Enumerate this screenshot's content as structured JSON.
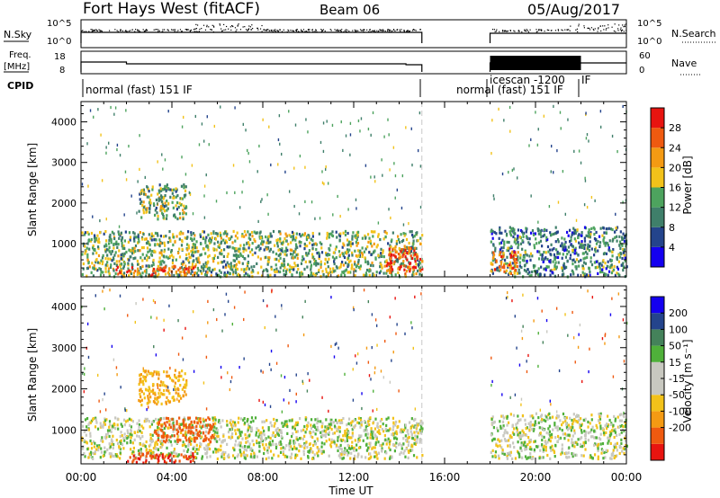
{
  "header": {
    "station": "Fort Hays West (fitACF)",
    "beam": "Beam 06",
    "date": "05/Aug/2017"
  },
  "summary_panels": {
    "nsky_label": "N.Sky",
    "nsky_ticks": [
      "10^5",
      "10^0"
    ],
    "nsearch_label": "N.Search",
    "freq_label_1": "Freq.",
    "freq_label_2": "[MHz]",
    "freq_ticks": [
      "18",
      "8"
    ],
    "nave_label": "Nave",
    "nave_ticks": [
      "60",
      "0"
    ],
    "cpid_label": "CPID",
    "cpid_segments": [
      "normal (fast) 151 IF",
      "normal (fast)  151 IF",
      "icescan -1200",
      "IF"
    ]
  },
  "colors": {
    "power": [
      "#1400f0",
      "#24448c",
      "#3f7f6a",
      "#4da35e",
      "#f2c21a",
      "#f49a13",
      "#ef5a10",
      "#e81410"
    ],
    "velocity": [
      "#e81410",
      "#ef5a10",
      "#f49a13",
      "#f2c21a",
      "#c8c8c0",
      "#c8c8c0",
      "#4fb03a",
      "#44825a",
      "#24448c",
      "#1400f0"
    ]
  },
  "chart_data": [
    {
      "type": "heatmap",
      "title": "",
      "xlabel": "Time UT",
      "ylabel": "Slant Range [km]",
      "xlim": [
        "00:00",
        "24:00"
      ],
      "ylim": [
        180,
        4500
      ],
      "x_ticks": [
        "00:00",
        "04:00",
        "08:00",
        "12:00",
        "16:00",
        "20:00",
        "00:00"
      ],
      "y_ticks": [
        "1000",
        "2000",
        "3000",
        "4000"
      ],
      "colorbar_label": "Power [dB]",
      "colorbar_ticks": [
        "4",
        "8",
        "12",
        "16",
        "20",
        "24",
        "28"
      ],
      "colorbar_range": [
        0,
        32
      ],
      "data_gap_ut": [
        15.0,
        18.0
      ],
      "scatter_regions": [
        {
          "t_start": 0.0,
          "t_end": 15.0,
          "range_km": [
            180,
            1300
          ],
          "typical_power_db": 14
        },
        {
          "t_start": 1.5,
          "t_end": 5.0,
          "range_km": [
            200,
            450
          ],
          "typical_power_db": 26
        },
        {
          "t_start": 2.5,
          "t_end": 4.6,
          "range_km": [
            1600,
            2450
          ],
          "typical_power_db": 14
        },
        {
          "t_start": 13.4,
          "t_end": 15.0,
          "range_km": [
            250,
            900
          ],
          "typical_power_db": 27
        },
        {
          "t_start": 18.0,
          "t_end": 24.0,
          "range_km": [
            180,
            1400
          ],
          "typical_power_db": 10
        },
        {
          "t_start": 18.0,
          "t_end": 19.2,
          "range_km": [
            250,
            800
          ],
          "typical_power_db": 24
        }
      ]
    },
    {
      "type": "heatmap",
      "title": "",
      "xlabel": "Time UT",
      "ylabel": "Slant Range [km]",
      "xlim": [
        "00:00",
        "24:00"
      ],
      "ylim": [
        180,
        4500
      ],
      "x_ticks": [
        "00:00",
        "04:00",
        "08:00",
        "12:00",
        "16:00",
        "20:00",
        "00:00"
      ],
      "y_ticks": [
        "1000",
        "2000",
        "3000",
        "4000"
      ],
      "colorbar_label": "Velocity [m s⁻¹]",
      "colorbar_ticks": [
        "200",
        "100",
        "50",
        "15",
        "-15",
        "-50",
        "-100",
        "-200"
      ],
      "colorbar_range": [
        -250,
        250
      ],
      "data_gap_ut": [
        15.0,
        18.0
      ],
      "scatter_regions": [
        {
          "t_start": 0.0,
          "t_end": 15.0,
          "range_km": [
            300,
            1300
          ],
          "typical_velocity_ms": 0
        },
        {
          "t_start": 2.0,
          "t_end": 5.0,
          "range_km": [
            200,
            450
          ],
          "typical_velocity_ms": -200
        },
        {
          "t_start": 3.2,
          "t_end": 5.8,
          "range_km": [
            700,
            1300
          ],
          "typical_velocity_ms": -150
        },
        {
          "t_start": 2.5,
          "t_end": 4.6,
          "range_km": [
            1600,
            2450
          ],
          "typical_velocity_ms": -60
        },
        {
          "t_start": 18.0,
          "t_end": 24.0,
          "range_km": [
            300,
            1400
          ],
          "typical_velocity_ms": 0
        }
      ]
    }
  ]
}
